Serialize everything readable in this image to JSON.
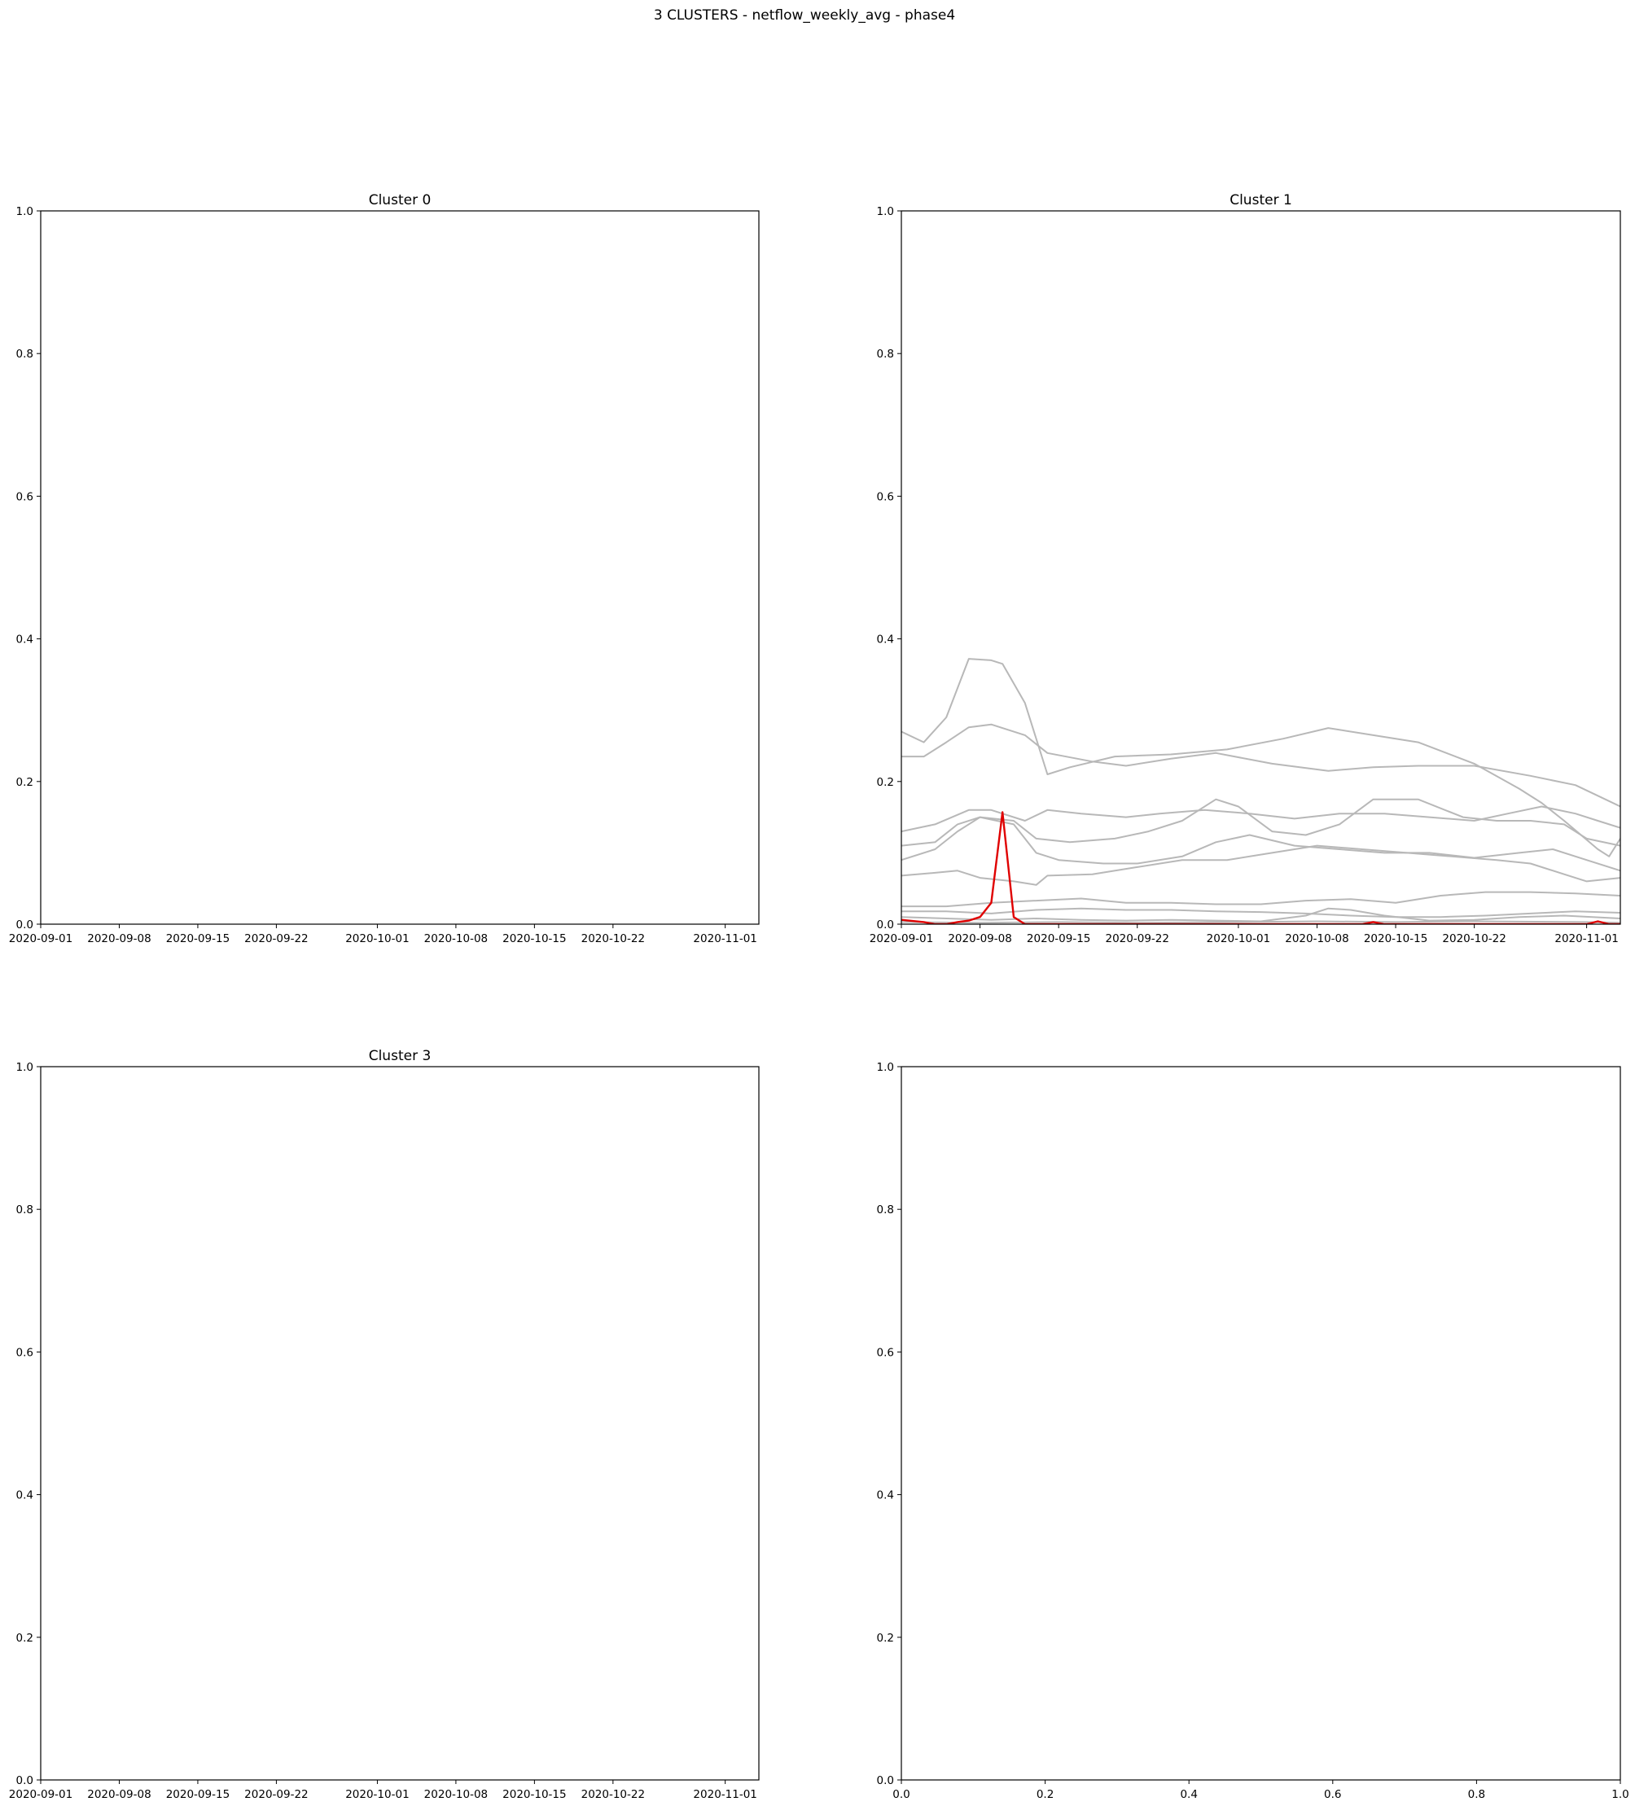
{
  "suptitle": "3 CLUSTERS - netflow_weekly_avg - phase4",
  "colors": {
    "member_line": "#b8b8b8",
    "highlight_line": "#e00000",
    "frame": "#000000"
  },
  "chart_data": [
    {
      "type": "line",
      "title": "Cluster 0",
      "xlabel": "",
      "ylabel": "",
      "x_type": "date",
      "xlim": [
        "2020-09-01",
        "2020-11-04"
      ],
      "ylim": [
        0,
        1
      ],
      "grid": false,
      "xticks": [
        "2020-09-01",
        "2020-09-08",
        "2020-09-15",
        "2020-09-22",
        "2020-10-01",
        "2020-10-08",
        "2020-10-15",
        "2020-10-22",
        "2020-11-01"
      ],
      "yticks": [
        "0.0",
        "0.2",
        "0.4",
        "0.6",
        "0.8",
        "1.0"
      ],
      "series": []
    },
    {
      "type": "line",
      "title": "Cluster 1",
      "xlabel": "",
      "ylabel": "",
      "x_type": "date",
      "xlim": [
        "2020-09-01",
        "2020-11-04"
      ],
      "ylim": [
        0,
        1
      ],
      "grid": false,
      "xticks": [
        "2020-09-01",
        "2020-09-08",
        "2020-09-15",
        "2020-09-22",
        "2020-10-01",
        "2020-10-08",
        "2020-10-15",
        "2020-10-22",
        "2020-11-01"
      ],
      "yticks": [
        "0.0",
        "0.2",
        "0.4",
        "0.6",
        "0.8",
        "1.0"
      ],
      "series": [
        {
          "color": "#b8b8b8",
          "points": [
            [
              "2020-09-01",
              0.27
            ],
            [
              "2020-09-03",
              0.255
            ],
            [
              "2020-09-05",
              0.29
            ],
            [
              "2020-09-07",
              0.372
            ],
            [
              "2020-09-09",
              0.37
            ],
            [
              "2020-09-10",
              0.365
            ],
            [
              "2020-09-12",
              0.31
            ],
            [
              "2020-09-14",
              0.21
            ],
            [
              "2020-09-16",
              0.22
            ],
            [
              "2020-09-20",
              0.235
            ],
            [
              "2020-09-25",
              0.238
            ],
            [
              "2020-09-30",
              0.245
            ],
            [
              "2020-10-05",
              0.26
            ],
            [
              "2020-10-09",
              0.275
            ],
            [
              "2020-10-13",
              0.265
            ],
            [
              "2020-10-17",
              0.255
            ],
            [
              "2020-10-22",
              0.225
            ],
            [
              "2020-10-26",
              0.19
            ],
            [
              "2020-10-28",
              0.17
            ],
            [
              "2020-10-30",
              0.145
            ],
            [
              "2020-11-02",
              0.105
            ],
            [
              "2020-11-03",
              0.095
            ],
            [
              "2020-11-04",
              0.12
            ]
          ]
        },
        {
          "color": "#b8b8b8",
          "points": [
            [
              "2020-09-01",
              0.235
            ],
            [
              "2020-09-03",
              0.235
            ],
            [
              "2020-09-05",
              0.255
            ],
            [
              "2020-09-07",
              0.276
            ],
            [
              "2020-09-09",
              0.28
            ],
            [
              "2020-09-12",
              0.265
            ],
            [
              "2020-09-14",
              0.24
            ],
            [
              "2020-09-18",
              0.228
            ],
            [
              "2020-09-21",
              0.222
            ],
            [
              "2020-09-25",
              0.232
            ],
            [
              "2020-09-29",
              0.24
            ],
            [
              "2020-10-04",
              0.225
            ],
            [
              "2020-10-09",
              0.215
            ],
            [
              "2020-10-13",
              0.22
            ],
            [
              "2020-10-17",
              0.222
            ],
            [
              "2020-10-22",
              0.222
            ],
            [
              "2020-10-27",
              0.208
            ],
            [
              "2020-10-31",
              0.195
            ],
            [
              "2020-11-02",
              0.18
            ],
            [
              "2020-11-04",
              0.165
            ]
          ]
        },
        {
          "color": "#b8b8b8",
          "points": [
            [
              "2020-09-01",
              0.13
            ],
            [
              "2020-09-04",
              0.14
            ],
            [
              "2020-09-07",
              0.16
            ],
            [
              "2020-09-09",
              0.16
            ],
            [
              "2020-09-12",
              0.145
            ],
            [
              "2020-09-14",
              0.16
            ],
            [
              "2020-09-17",
              0.155
            ],
            [
              "2020-09-21",
              0.15
            ],
            [
              "2020-09-24",
              0.155
            ],
            [
              "2020-09-28",
              0.16
            ],
            [
              "2020-10-02",
              0.155
            ],
            [
              "2020-10-06",
              0.148
            ],
            [
              "2020-10-10",
              0.155
            ],
            [
              "2020-10-14",
              0.155
            ],
            [
              "2020-10-18",
              0.15
            ],
            [
              "2020-10-22",
              0.145
            ],
            [
              "2020-10-25",
              0.155
            ],
            [
              "2020-10-28",
              0.165
            ],
            [
              "2020-10-31",
              0.155
            ],
            [
              "2020-11-02",
              0.145
            ],
            [
              "2020-11-04",
              0.135
            ]
          ]
        },
        {
          "color": "#b8b8b8",
          "points": [
            [
              "2020-09-01",
              0.11
            ],
            [
              "2020-09-04",
              0.115
            ],
            [
              "2020-09-06",
              0.14
            ],
            [
              "2020-09-08",
              0.15
            ],
            [
              "2020-09-11",
              0.145
            ],
            [
              "2020-09-13",
              0.12
            ],
            [
              "2020-09-16",
              0.115
            ],
            [
              "2020-09-20",
              0.12
            ],
            [
              "2020-09-23",
              0.13
            ],
            [
              "2020-09-26",
              0.145
            ],
            [
              "2020-09-29",
              0.175
            ],
            [
              "2020-10-01",
              0.165
            ],
            [
              "2020-10-04",
              0.13
            ],
            [
              "2020-10-07",
              0.125
            ],
            [
              "2020-10-10",
              0.14
            ],
            [
              "2020-10-13",
              0.175
            ],
            [
              "2020-10-17",
              0.175
            ],
            [
              "2020-10-21",
              0.15
            ],
            [
              "2020-10-24",
              0.145
            ],
            [
              "2020-10-27",
              0.145
            ],
            [
              "2020-10-30",
              0.14
            ],
            [
              "2020-11-01",
              0.12
            ],
            [
              "2020-11-04",
              0.11
            ]
          ]
        },
        {
          "color": "#b8b8b8",
          "points": [
            [
              "2020-09-01",
              0.09
            ],
            [
              "2020-09-04",
              0.105
            ],
            [
              "2020-09-06",
              0.13
            ],
            [
              "2020-09-08",
              0.15
            ],
            [
              "2020-09-11",
              0.14
            ],
            [
              "2020-09-13",
              0.1
            ],
            [
              "2020-09-15",
              0.09
            ],
            [
              "2020-09-19",
              0.085
            ],
            [
              "2020-09-22",
              0.085
            ],
            [
              "2020-09-26",
              0.095
            ],
            [
              "2020-09-29",
              0.115
            ],
            [
              "2020-10-02",
              0.125
            ],
            [
              "2020-10-06",
              0.11
            ],
            [
              "2020-10-10",
              0.105
            ],
            [
              "2020-10-14",
              0.1
            ],
            [
              "2020-10-18",
              0.1
            ],
            [
              "2020-10-22",
              0.093
            ],
            [
              "2020-10-26",
              0.1
            ],
            [
              "2020-10-29",
              0.105
            ],
            [
              "2020-11-01",
              0.09
            ],
            [
              "2020-11-04",
              0.075
            ]
          ]
        },
        {
          "color": "#b8b8b8",
          "points": [
            [
              "2020-09-01",
              0.068
            ],
            [
              "2020-09-04",
              0.072
            ],
            [
              "2020-09-06",
              0.075
            ],
            [
              "2020-09-08",
              0.065
            ],
            [
              "2020-09-11",
              0.06
            ],
            [
              "2020-09-13",
              0.055
            ],
            [
              "2020-09-14",
              0.068
            ],
            [
              "2020-09-18",
              0.07
            ],
            [
              "2020-09-22",
              0.08
            ],
            [
              "2020-09-26",
              0.09
            ],
            [
              "2020-09-30",
              0.09
            ],
            [
              "2020-10-04",
              0.1
            ],
            [
              "2020-10-08",
              0.11
            ],
            [
              "2020-10-12",
              0.105
            ],
            [
              "2020-10-16",
              0.1
            ],
            [
              "2020-10-20",
              0.095
            ],
            [
              "2020-10-24",
              0.09
            ],
            [
              "2020-10-27",
              0.085
            ],
            [
              "2020-10-30",
              0.07
            ],
            [
              "2020-11-01",
              0.06
            ],
            [
              "2020-11-04",
              0.065
            ]
          ]
        },
        {
          "color": "#b8b8b8",
          "points": [
            [
              "2020-09-01",
              0.025
            ],
            [
              "2020-09-05",
              0.025
            ],
            [
              "2020-09-09",
              0.03
            ],
            [
              "2020-09-13",
              0.033
            ],
            [
              "2020-09-17",
              0.036
            ],
            [
              "2020-09-21",
              0.03
            ],
            [
              "2020-09-25",
              0.03
            ],
            [
              "2020-09-29",
              0.028
            ],
            [
              "2020-10-03",
              0.028
            ],
            [
              "2020-10-07",
              0.033
            ],
            [
              "2020-10-11",
              0.035
            ],
            [
              "2020-10-15",
              0.03
            ],
            [
              "2020-10-19",
              0.04
            ],
            [
              "2020-10-23",
              0.045
            ],
            [
              "2020-10-27",
              0.045
            ],
            [
              "2020-10-31",
              0.043
            ],
            [
              "2020-11-04",
              0.04
            ]
          ]
        },
        {
          "color": "#b8b8b8",
          "points": [
            [
              "2020-09-01",
              0.018
            ],
            [
              "2020-09-05",
              0.018
            ],
            [
              "2020-09-09",
              0.015
            ],
            [
              "2020-09-13",
              0.02
            ],
            [
              "2020-09-17",
              0.022
            ],
            [
              "2020-09-21",
              0.02
            ],
            [
              "2020-09-25",
              0.02
            ],
            [
              "2020-09-29",
              0.018
            ],
            [
              "2020-10-03",
              0.017
            ],
            [
              "2020-10-07",
              0.015
            ],
            [
              "2020-10-11",
              0.012
            ],
            [
              "2020-10-15",
              0.01
            ],
            [
              "2020-10-19",
              0.01
            ],
            [
              "2020-10-23",
              0.012
            ],
            [
              "2020-10-27",
              0.015
            ],
            [
              "2020-10-31",
              0.018
            ],
            [
              "2020-11-04",
              0.016
            ]
          ]
        },
        {
          "color": "#b8b8b8",
          "points": [
            [
              "2020-09-01",
              0.01
            ],
            [
              "2020-09-05",
              0.008
            ],
            [
              "2020-09-09",
              0.006
            ],
            [
              "2020-09-13",
              0.008
            ],
            [
              "2020-09-17",
              0.006
            ],
            [
              "2020-09-21",
              0.005
            ],
            [
              "2020-09-25",
              0.006
            ],
            [
              "2020-09-29",
              0.005
            ],
            [
              "2020-10-03",
              0.004
            ],
            [
              "2020-10-07",
              0.012
            ],
            [
              "2020-10-09",
              0.022
            ],
            [
              "2020-10-11",
              0.02
            ],
            [
              "2020-10-14",
              0.012
            ],
            [
              "2020-10-18",
              0.005
            ],
            [
              "2020-10-22",
              0.006
            ],
            [
              "2020-10-26",
              0.01
            ],
            [
              "2020-10-30",
              0.012
            ],
            [
              "2020-11-04",
              0.008
            ]
          ]
        },
        {
          "color": "#b8b8b8",
          "points": [
            [
              "2020-09-01",
              0.003
            ],
            [
              "2020-09-08",
              0.002
            ],
            [
              "2020-09-15",
              0.003
            ],
            [
              "2020-09-22",
              0.002
            ],
            [
              "2020-10-01",
              0.003
            ],
            [
              "2020-10-08",
              0.004
            ],
            [
              "2020-10-15",
              0.003
            ],
            [
              "2020-10-22",
              0.004
            ],
            [
              "2020-11-01",
              0.003
            ],
            [
              "2020-11-04",
              0.002
            ]
          ]
        },
        {
          "color": "#e00000",
          "points": [
            [
              "2020-09-01",
              0.006
            ],
            [
              "2020-09-03",
              0.003
            ],
            [
              "2020-09-04",
              0.0
            ],
            [
              "2020-09-05",
              0.0
            ],
            [
              "2020-09-06",
              0.003
            ],
            [
              "2020-09-07",
              0.005
            ],
            [
              "2020-09-08",
              0.01
            ],
            [
              "2020-09-09",
              0.03
            ],
            [
              "2020-09-10",
              0.157
            ],
            [
              "2020-09-11",
              0.01
            ],
            [
              "2020-09-12",
              0.0
            ],
            [
              "2020-10-12",
              0.0
            ],
            [
              "2020-10-13",
              0.003
            ],
            [
              "2020-10-14",
              0.0
            ],
            [
              "2020-11-01",
              0.0
            ],
            [
              "2020-11-02",
              0.004
            ],
            [
              "2020-11-03",
              0.0
            ],
            [
              "2020-11-04",
              0.0
            ]
          ]
        }
      ]
    },
    {
      "type": "line",
      "title": "Cluster 3",
      "xlabel": "",
      "ylabel": "",
      "x_type": "date",
      "xlim": [
        "2020-09-01",
        "2020-11-04"
      ],
      "ylim": [
        0,
        1
      ],
      "grid": false,
      "xticks": [
        "2020-09-01",
        "2020-09-08",
        "2020-09-15",
        "2020-09-22",
        "2020-10-01",
        "2020-10-08",
        "2020-10-15",
        "2020-10-22",
        "2020-11-01"
      ],
      "yticks": [
        "0.0",
        "0.2",
        "0.4",
        "0.6",
        "0.8",
        "1.0"
      ],
      "series": []
    },
    {
      "type": "line",
      "title": "",
      "xlabel": "",
      "ylabel": "",
      "x_type": "number",
      "xlim": [
        0,
        1
      ],
      "ylim": [
        0,
        1
      ],
      "grid": false,
      "xticks": [
        "0.0",
        "0.2",
        "0.4",
        "0.6",
        "0.8",
        "1.0"
      ],
      "yticks": [
        "0.0",
        "0.2",
        "0.4",
        "0.6",
        "0.8",
        "1.0"
      ],
      "series": []
    }
  ]
}
